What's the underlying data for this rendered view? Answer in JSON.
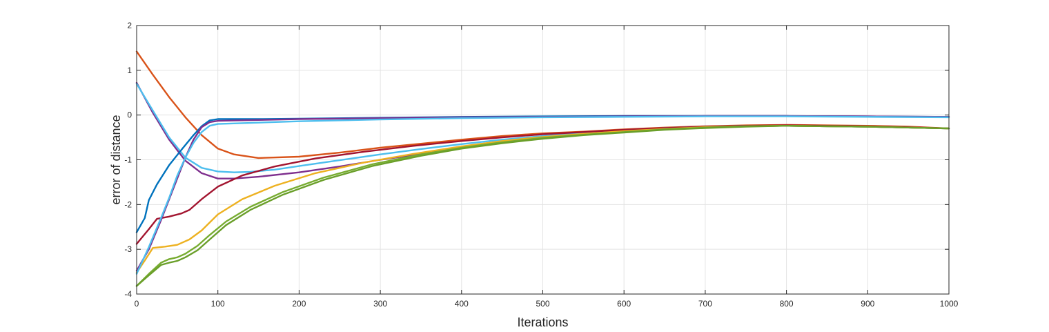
{
  "chart_data": {
    "type": "line",
    "title": "",
    "xlabel": "Iterations",
    "ylabel": "error of distance",
    "xlim": [
      0,
      1000
    ],
    "ylim": [
      -4,
      2
    ],
    "xticks": [
      0,
      100,
      200,
      300,
      400,
      500,
      600,
      700,
      800,
      900,
      1000
    ],
    "yticks": [
      -4,
      -3,
      -2,
      -1,
      0,
      1,
      2
    ],
    "grid": true,
    "legend": "none",
    "series": [
      {
        "color": "#d95319",
        "x": [
          0,
          20,
          40,
          60,
          80,
          100,
          120,
          150,
          200,
          250,
          300,
          350,
          400,
          450,
          500,
          550,
          600,
          650,
          700,
          750,
          800,
          850,
          900,
          950,
          1000
        ],
        "y": [
          1.42,
          0.9,
          0.4,
          -0.05,
          -0.45,
          -0.75,
          -0.88,
          -0.96,
          -0.93,
          -0.84,
          -0.73,
          -0.64,
          -0.55,
          -0.47,
          -0.41,
          -0.37,
          -0.32,
          -0.28,
          -0.25,
          -0.23,
          -0.22,
          -0.23,
          -0.24,
          -0.26,
          -0.3
        ]
      },
      {
        "color": "#7e2f8e",
        "x": [
          0,
          20,
          40,
          60,
          80,
          100,
          120,
          150,
          200,
          250,
          300,
          350,
          400,
          450,
          500,
          550,
          600,
          650,
          700,
          750,
          800,
          850,
          900,
          950,
          1000
        ],
        "y": [
          0.72,
          0.05,
          -0.55,
          -1.02,
          -1.3,
          -1.42,
          -1.42,
          -1.38,
          -1.28,
          -1.15,
          -1.0,
          -0.87,
          -0.74,
          -0.62,
          -0.52,
          -0.44,
          -0.37,
          -0.31,
          -0.27,
          -0.25,
          -0.24,
          -0.25,
          -0.26,
          -0.28,
          -0.3
        ]
      },
      {
        "color": "#4dbeee",
        "x": [
          0,
          20,
          40,
          60,
          80,
          100,
          120,
          140,
          170,
          200,
          250,
          300,
          350,
          400,
          450,
          500,
          550,
          600,
          650,
          700,
          750,
          800,
          850,
          900,
          950,
          1000
        ],
        "y": [
          0.7,
          0.1,
          -0.5,
          -0.95,
          -1.18,
          -1.26,
          -1.28,
          -1.27,
          -1.22,
          -1.14,
          -1.01,
          -0.88,
          -0.76,
          -0.65,
          -0.55,
          -0.47,
          -0.4,
          -0.34,
          -0.29,
          -0.26,
          -0.24,
          -0.24,
          -0.25,
          -0.26,
          -0.28,
          -0.3
        ]
      },
      {
        "color": "#a2142f",
        "x": [
          0,
          15,
          25,
          40,
          55,
          65,
          80,
          100,
          130,
          170,
          220,
          280,
          340,
          400,
          450,
          500,
          550,
          600,
          650,
          700,
          750,
          800,
          850,
          900,
          950,
          1000
        ],
        "y": [
          -2.88,
          -2.55,
          -2.32,
          -2.27,
          -2.2,
          -2.12,
          -1.88,
          -1.6,
          -1.35,
          -1.15,
          -0.97,
          -0.82,
          -0.69,
          -0.58,
          -0.5,
          -0.43,
          -0.38,
          -0.33,
          -0.29,
          -0.26,
          -0.24,
          -0.23,
          -0.24,
          -0.25,
          -0.27,
          -0.3
        ]
      },
      {
        "color": "#edb120",
        "x": [
          0,
          10,
          20,
          35,
          50,
          65,
          80,
          100,
          130,
          170,
          220,
          280,
          340,
          400,
          450,
          500,
          550,
          600,
          650,
          700,
          750,
          800,
          850,
          900,
          950,
          1000
        ],
        "y": [
          -3.52,
          -3.25,
          -2.97,
          -2.94,
          -2.9,
          -2.78,
          -2.58,
          -2.22,
          -1.88,
          -1.58,
          -1.3,
          -1.06,
          -0.87,
          -0.7,
          -0.58,
          -0.49,
          -0.42,
          -0.36,
          -0.31,
          -0.27,
          -0.25,
          -0.24,
          -0.25,
          -0.26,
          -0.28,
          -0.3
        ]
      },
      {
        "color": "#77ac30",
        "x": [
          0,
          15,
          30,
          40,
          50,
          60,
          75,
          90,
          110,
          140,
          180,
          230,
          290,
          350,
          400,
          450,
          500,
          550,
          600,
          650,
          700,
          750,
          800,
          850,
          900,
          950,
          1000
        ],
        "y": [
          -3.82,
          -3.55,
          -3.3,
          -3.22,
          -3.18,
          -3.1,
          -2.92,
          -2.68,
          -2.38,
          -2.05,
          -1.72,
          -1.4,
          -1.1,
          -0.88,
          -0.73,
          -0.61,
          -0.51,
          -0.44,
          -0.38,
          -0.32,
          -0.28,
          -0.25,
          -0.24,
          -0.25,
          -0.26,
          -0.28,
          -0.3
        ]
      },
      {
        "color": "#6a9f2a",
        "x": [
          0,
          15,
          30,
          40,
          50,
          60,
          75,
          90,
          110,
          140,
          180,
          230,
          290,
          350,
          400,
          450,
          500,
          550,
          600,
          650,
          700,
          750,
          800,
          850,
          900,
          950,
          1000
        ],
        "y": [
          -3.82,
          -3.58,
          -3.35,
          -3.3,
          -3.26,
          -3.18,
          -3.02,
          -2.78,
          -2.46,
          -2.12,
          -1.78,
          -1.45,
          -1.14,
          -0.91,
          -0.75,
          -0.63,
          -0.53,
          -0.45,
          -0.39,
          -0.33,
          -0.29,
          -0.26,
          -0.24,
          -0.25,
          -0.26,
          -0.28,
          -0.3
        ]
      },
      {
        "color": "#0072bd",
        "x": [
          0,
          10,
          15,
          25,
          40,
          55,
          70,
          80,
          90,
          100,
          150,
          200,
          300,
          400,
          500,
          600,
          700,
          800,
          900,
          1000
        ],
        "y": [
          -2.62,
          -2.3,
          -1.9,
          -1.55,
          -1.12,
          -0.78,
          -0.45,
          -0.25,
          -0.12,
          -0.09,
          -0.09,
          -0.08,
          -0.06,
          -0.04,
          -0.03,
          -0.02,
          -0.02,
          -0.02,
          -0.03,
          -0.04
        ]
      },
      {
        "color": "#7e2f8e",
        "x": [
          0,
          15,
          30,
          45,
          60,
          70,
          80,
          90,
          100,
          150,
          200,
          300,
          400,
          500,
          600,
          700,
          800,
          900,
          1000
        ],
        "y": [
          -3.48,
          -3.0,
          -2.35,
          -1.65,
          -0.95,
          -0.55,
          -0.27,
          -0.16,
          -0.13,
          -0.11,
          -0.09,
          -0.07,
          -0.05,
          -0.04,
          -0.03,
          -0.02,
          -0.02,
          -0.03,
          -0.04
        ]
      },
      {
        "color": "#4dbeee",
        "x": [
          0,
          15,
          30,
          40,
          50,
          60,
          70,
          80,
          90,
          100,
          150,
          200,
          300,
          400,
          500,
          600,
          700,
          800,
          900,
          1000
        ],
        "y": [
          -3.55,
          -2.95,
          -2.3,
          -1.85,
          -1.35,
          -0.95,
          -0.62,
          -0.38,
          -0.24,
          -0.2,
          -0.17,
          -0.14,
          -0.1,
          -0.07,
          -0.05,
          -0.04,
          -0.03,
          -0.03,
          -0.04,
          -0.05
        ]
      }
    ]
  }
}
